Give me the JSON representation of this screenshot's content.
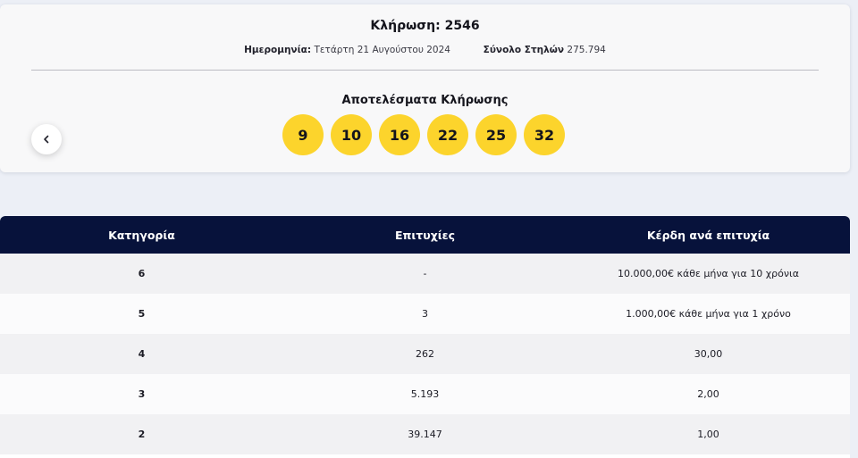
{
  "draw": {
    "title": "Κλήρωση: 2546",
    "date_label": "Ημερομηνία:",
    "date_value": "Τετάρτη 21 Αυγούστου 2024",
    "columns_label": "Σύνολο Στηλών",
    "columns_value": "275.794",
    "results_title": "Αποτελέσματα Κλήρωσης",
    "numbers": [
      "9",
      "10",
      "16",
      "22",
      "25",
      "32"
    ],
    "prev_icon": "chevron-left-icon"
  },
  "colors": {
    "ball": "#fcd42c",
    "table_header": "#07123b",
    "page_bg": "#eceff6"
  },
  "table": {
    "headers": [
      "Κατηγορία",
      "Επιτυχίες",
      "Κέρδη ανά επιτυχία"
    ],
    "rows": [
      {
        "category": "6",
        "winners": "-",
        "prize": "10.000,00€ κάθε μήνα για 10 χρόνια"
      },
      {
        "category": "5",
        "winners": "3",
        "prize": "1.000,00€ κάθε μήνα για 1 χρόνο"
      },
      {
        "category": "4",
        "winners": "262",
        "prize": "30,00"
      },
      {
        "category": "3",
        "winners": "5.193",
        "prize": "2,00"
      },
      {
        "category": "2",
        "winners": "39.147",
        "prize": "1,00"
      }
    ]
  }
}
